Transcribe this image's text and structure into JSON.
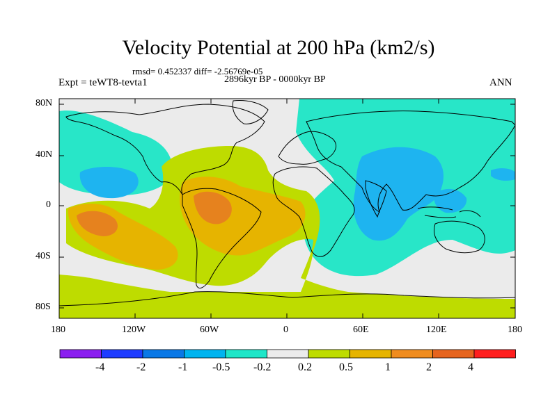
{
  "title": "Velocity Potential at 200 hPa (km2/s)",
  "stats_line": "rmsd= 0.452337 diff= -2.56769e-05",
  "period_line": "2896kyr BP - 0000kyr BP",
  "left_label": "Expt = teWT8-tevta1",
  "right_label": "ANN",
  "lat_labels": [
    "80N",
    "40N",
    "0",
    "40S",
    "80S"
  ],
  "lon_labels": [
    "180",
    "120W",
    "60W",
    "0",
    "60E",
    "120E",
    "180"
  ],
  "colorbar": {
    "colors": [
      "#8b1ef0",
      "#1e3cff",
      "#0a78e6",
      "#00b4f0",
      "#1ee6c8",
      "#ebebeb",
      "#bedc00",
      "#e6b400",
      "#f08c1e",
      "#e6641e",
      "#ff1e1e"
    ],
    "labels": [
      "-4",
      "-2",
      "-1",
      "-0.5",
      "-0.2",
      "0.2",
      "0.5",
      "1",
      "2",
      "4"
    ]
  },
  "palette": {
    "neutral": "#ebebeb",
    "weak_pos": "#bedc00",
    "mod_pos": "#e6b400",
    "strong_pos": "#e6821e",
    "weak_neg": "#28e6c8",
    "mod_neg": "#1eb4f0",
    "strong_neg": "#0a78e6",
    "coast": "#000000"
  }
}
